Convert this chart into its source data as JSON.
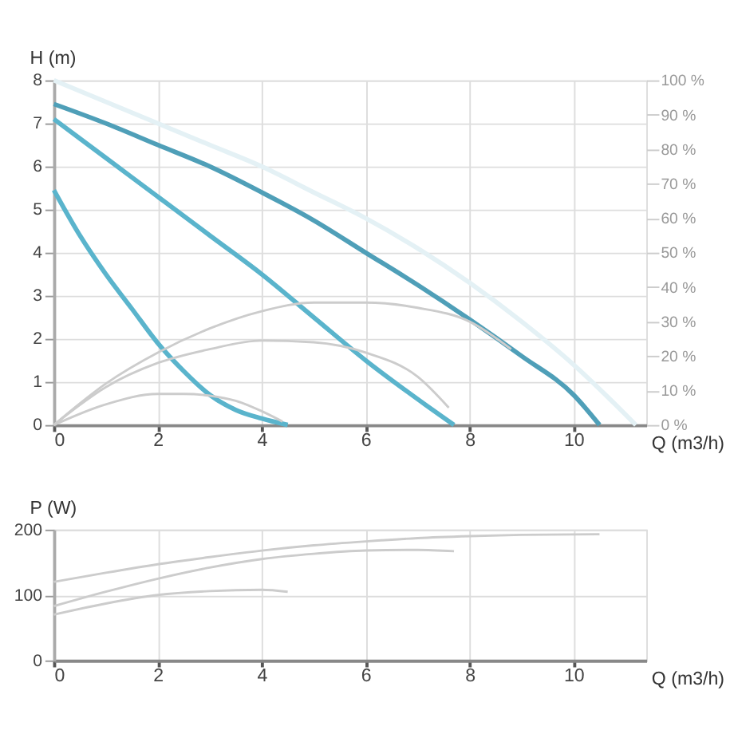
{
  "chart_data": [
    {
      "type": "line",
      "xlabel": "Q (m3/h)",
      "ylabel": "H (m)",
      "xlim": [
        0,
        11.4
      ],
      "ylim": [
        0,
        8
      ],
      "xticks": [
        0,
        2,
        4,
        6,
        8,
        10
      ],
      "yticks": [
        0,
        1,
        2,
        3,
        4,
        5,
        6,
        7,
        8
      ],
      "y2lim": [
        0,
        100
      ],
      "y2ticks": [
        {
          "value": 0,
          "label": "0 %"
        },
        {
          "value": 10,
          "label": "10 %"
        },
        {
          "value": 20,
          "label": "20 %"
        },
        {
          "value": 30,
          "label": "30 %"
        },
        {
          "value": 40,
          "label": "40 %"
        },
        {
          "value": 50,
          "label": "50 %"
        },
        {
          "value": 60,
          "label": "60 %"
        },
        {
          "value": 70,
          "label": "70 %"
        },
        {
          "value": 80,
          "label": "80 %"
        },
        {
          "value": 90,
          "label": "90 %"
        },
        {
          "value": 100,
          "label": "100 %"
        }
      ],
      "grid": true,
      "marker": "none",
      "line_style": "solid",
      "series": [
        {
          "color": "#e4f1f5",
          "x": [
            0,
            1,
            2,
            3,
            4,
            5,
            6,
            7,
            8,
            9,
            10,
            11.2
          ],
          "values": [
            8,
            7.5,
            7,
            6.5,
            6,
            5.4,
            4.8,
            4.1,
            3.3,
            2.4,
            1.4,
            0
          ]
        },
        {
          "color": "#4f9fb8",
          "x": [
            0,
            1,
            2,
            3,
            4,
            5,
            6,
            7,
            8,
            9,
            10,
            10.5
          ],
          "values": [
            7.45,
            7.0,
            6.5,
            6.0,
            5.4,
            4.75,
            4.0,
            3.25,
            2.45,
            1.6,
            0.7,
            0
          ]
        },
        {
          "color": "#5ab4cc",
          "x": [
            0,
            1,
            2,
            3,
            4,
            5,
            6,
            7,
            7.7
          ],
          "values": [
            7.1,
            6.2,
            5.3,
            4.4,
            3.5,
            2.5,
            1.5,
            0.6,
            0
          ]
        },
        {
          "color": "#5ab4cc",
          "x": [
            0,
            0.5,
            1,
            1.5,
            2,
            2.5,
            3,
            3.5,
            4,
            4.5
          ],
          "values": [
            5.45,
            4.4,
            3.5,
            2.7,
            1.9,
            1.25,
            0.7,
            0.35,
            0.15,
            0
          ]
        },
        {
          "color": "#cccccc",
          "axis": "y2",
          "x": [
            0,
            1,
            2,
            3,
            4,
            5,
            6,
            7,
            8,
            8.8
          ],
          "values": [
            0,
            12,
            21,
            28,
            33,
            35.5,
            35.5,
            34,
            30,
            22
          ]
        },
        {
          "color": "#cccccc",
          "axis": "y2",
          "x": [
            0,
            1,
            2,
            3,
            4,
            5,
            6,
            7,
            7.6
          ],
          "values": [
            0,
            11,
            18,
            22,
            24.5,
            24,
            21,
            14,
            5
          ]
        },
        {
          "color": "#cccccc",
          "axis": "y2",
          "x": [
            0,
            1,
            2,
            2.5,
            3,
            3.5,
            4,
            4.4
          ],
          "values": [
            0,
            6,
            9,
            9,
            8.5,
            7,
            4,
            1
          ]
        }
      ]
    },
    {
      "type": "line",
      "xlabel": "Q (m3/h)",
      "ylabel": "P (W)",
      "xlim": [
        0,
        11.4
      ],
      "ylim": [
        0,
        200
      ],
      "xticks": [
        0,
        2,
        4,
        6,
        8,
        10
      ],
      "yticks": [
        0,
        100,
        200
      ],
      "grid": true,
      "marker": "none",
      "line_style": "solid",
      "series": [
        {
          "color": "#cccccc",
          "x": [
            0,
            1,
            2,
            3,
            4,
            5,
            6,
            7,
            8,
            9,
            10.5
          ],
          "values": [
            120,
            134,
            147,
            158,
            168,
            176,
            182,
            187,
            190,
            192,
            193
          ]
        },
        {
          "color": "#cccccc",
          "x": [
            0,
            1,
            2,
            3,
            4,
            5,
            6,
            7,
            7.7
          ],
          "values": [
            83,
            105,
            125,
            142,
            155,
            163,
            168,
            169,
            167
          ]
        },
        {
          "color": "#cccccc",
          "x": [
            0,
            1,
            2,
            3,
            4,
            4.5
          ],
          "values": [
            70,
            87,
            100,
            106,
            108,
            105
          ]
        }
      ]
    }
  ]
}
